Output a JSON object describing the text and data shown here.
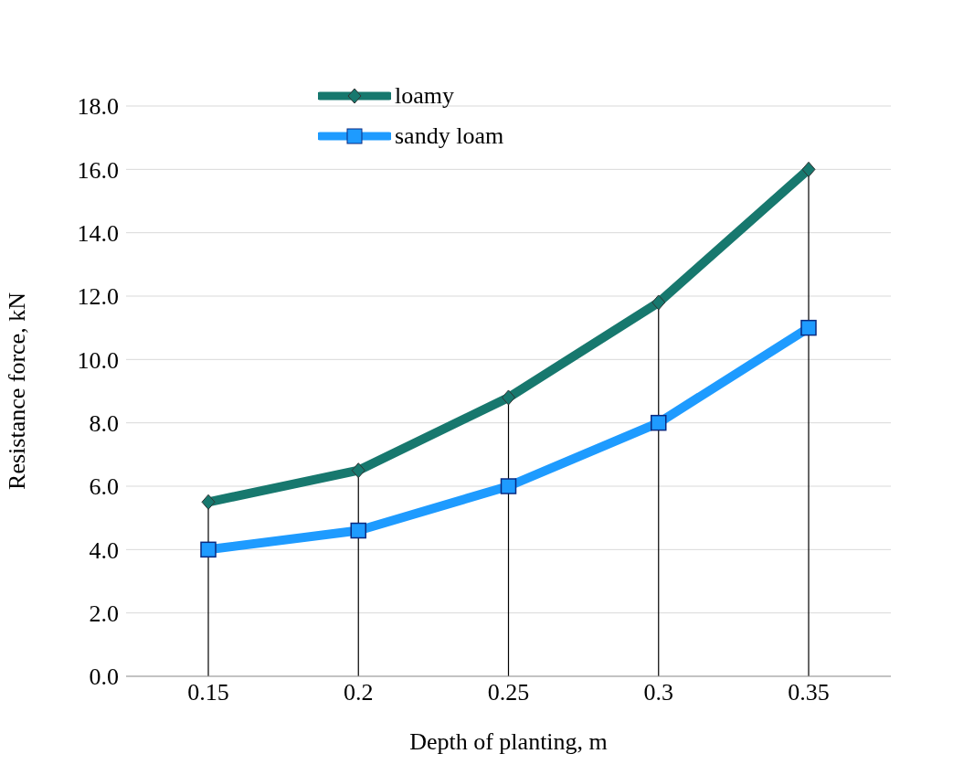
{
  "chart_data": {
    "type": "line",
    "xlabel": "Depth of planting, m",
    "ylabel": "Resistance force, kN",
    "categories": [
      "0.15",
      "0.2",
      "0.25",
      "0.3",
      "0.35"
    ],
    "series": [
      {
        "name": "loamy",
        "color": "#17786e",
        "marker": "diamond",
        "values": [
          5.5,
          6.5,
          8.8,
          11.8,
          16.0
        ],
        "errors": [
          [
            0,
            5.5
          ],
          [
            0,
            6.5
          ],
          [
            0,
            8.8
          ],
          [
            0,
            11.8
          ],
          [
            0,
            16.0
          ]
        ]
      },
      {
        "name": "sandy loam",
        "color": "#1e9bff",
        "marker": "square",
        "values": [
          4.0,
          4.6,
          6.0,
          8.0,
          11.0
        ]
      }
    ],
    "ylim": [
      0,
      18
    ],
    "yticks": [
      {
        "value": 0,
        "label": "0.0"
      },
      {
        "value": 2,
        "label": "2.0"
      },
      {
        "value": 4,
        "label": "4.0"
      },
      {
        "value": 6,
        "label": "6.0"
      },
      {
        "value": 8,
        "label": "8.0"
      },
      {
        "value": 10,
        "label": "10.0"
      },
      {
        "value": 12,
        "label": "12.0"
      },
      {
        "value": 14,
        "label": "14.0"
      },
      {
        "value": 16,
        "label": "16.0"
      },
      {
        "value": 18,
        "label": "18.0"
      }
    ],
    "grid": "y",
    "legend": "top left",
    "line_style": "solid"
  }
}
